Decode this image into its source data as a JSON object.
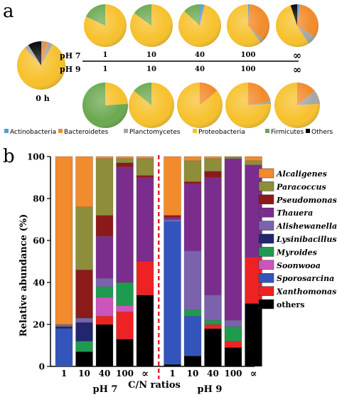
{
  "chart_data": [
    {
      "type": "pie",
      "panel_label": "a",
      "initial": {
        "label": "0 h",
        "values": [
          0.9,
          3.5,
          3.5,
          0,
          80,
          3.0,
          9.0
        ]
      },
      "row_labels": [
        "pH 7",
        "pH 9"
      ],
      "categories": [
        "1",
        "10",
        "40",
        "100",
        "∞"
      ],
      "slice_order": [
        "Actinobacteria",
        "Bacteroidetes",
        "Planctomycetes",
        "Proteobacteria",
        "Firmicutes",
        "Others"
      ],
      "pH7": [
        [
          0,
          0,
          0,
          82,
          18,
          0
        ],
        [
          0,
          0,
          0,
          85,
          15,
          0
        ],
        [
          3,
          1,
          0,
          83,
          13,
          0
        ],
        [
          1,
          36,
          3,
          60,
          0,
          0
        ],
        [
          2,
          32,
          7,
          54,
          0,
          5
        ]
      ],
      "pH9": [
        [
          0,
          0,
          0,
          24,
          76,
          0
        ],
        [
          0,
          0,
          0,
          86,
          14,
          0
        ],
        [
          0,
          14,
          0,
          86,
          0,
          0
        ],
        [
          0,
          22,
          2,
          76,
          0,
          0
        ],
        [
          0,
          14,
          10,
          76,
          0,
          0
        ]
      ],
      "legend": [
        "Actinobacteria",
        "Bacteroidetes",
        "Planctomycetes",
        "Proteobacteria",
        "Firmicutes",
        "Others"
      ],
      "colors": [
        "#4e9fd6",
        "#f28b2c",
        "#a6a6a6",
        "#f7c12c",
        "#6aa84f",
        "#000000"
      ]
    },
    {
      "type": "bar",
      "stacked": true,
      "panel_label": "b",
      "ylabel": "Relative abundance (%)",
      "xlabel": "C/N ratios",
      "ylim": [
        0,
        100
      ],
      "yticks": [
        0,
        20,
        40,
        60,
        80,
        100
      ],
      "groups": [
        "pH 7",
        "pH 9"
      ],
      "categories": [
        "1",
        "10",
        "40",
        "100",
        "∝",
        "1",
        "10",
        "40",
        "100",
        "∝"
      ],
      "series": [
        {
          "name": "others",
          "color": "#000000",
          "values": [
            0,
            7,
            20,
            13,
            34,
            1,
            5,
            18,
            9,
            30
          ]
        },
        {
          "name": "Xanthomonas",
          "color": "#ee2222",
          "values": [
            0,
            0,
            4,
            13,
            16,
            0,
            0,
            2,
            3,
            22
          ]
        },
        {
          "name": "Sporosarcina",
          "color": "#3355bb",
          "values": [
            18,
            0,
            0,
            0,
            0,
            68,
            19,
            0,
            0,
            0
          ]
        },
        {
          "name": "Soonwooa",
          "color": "#cc55bb",
          "values": [
            0,
            0,
            9,
            3,
            0,
            0,
            0,
            0,
            0,
            0
          ]
        },
        {
          "name": "Myroides",
          "color": "#1f9b4f",
          "values": [
            0,
            5,
            5,
            11,
            0,
            0,
            3,
            2,
            7,
            0
          ]
        },
        {
          "name": "Lysinibacillus",
          "color": "#22266e",
          "values": [
            1,
            9,
            0,
            0,
            0,
            0,
            0,
            0,
            0,
            0
          ]
        },
        {
          "name": "Alishewanella",
          "color": "#7a63ac",
          "values": [
            1,
            2,
            4,
            0,
            0,
            1,
            28,
            12,
            3,
            0
          ]
        },
        {
          "name": "Thauera",
          "color": "#7b2d8e",
          "values": [
            0,
            0,
            20,
            55,
            40,
            1,
            32,
            56,
            77,
            44
          ]
        },
        {
          "name": "Pseudomonas",
          "color": "#8c1a1a",
          "values": [
            0,
            23,
            10,
            2,
            1,
            1,
            1,
            3,
            0,
            0
          ]
        },
        {
          "name": "Paracoccus",
          "color": "#8e8e3a",
          "values": [
            0,
            30,
            27,
            2,
            8,
            0,
            10,
            6,
            1,
            2
          ]
        },
        {
          "name": "Alcaligenes",
          "color": "#f28b2c",
          "values": [
            80,
            24,
            1,
            1,
            1,
            28,
            2,
            1,
            0,
            2
          ]
        }
      ],
      "legend": [
        "Alcaligenes",
        "Paracoccus",
        "Pseudomonas",
        "Thauera",
        "Alishewanella",
        "Lysinibacillus",
        "Myroides",
        "Soonwooa",
        "Sporosarcina",
        "Xanthomonas",
        "others"
      ],
      "legend_italic": [
        true,
        true,
        true,
        true,
        true,
        true,
        true,
        true,
        true,
        true,
        false
      ]
    }
  ]
}
